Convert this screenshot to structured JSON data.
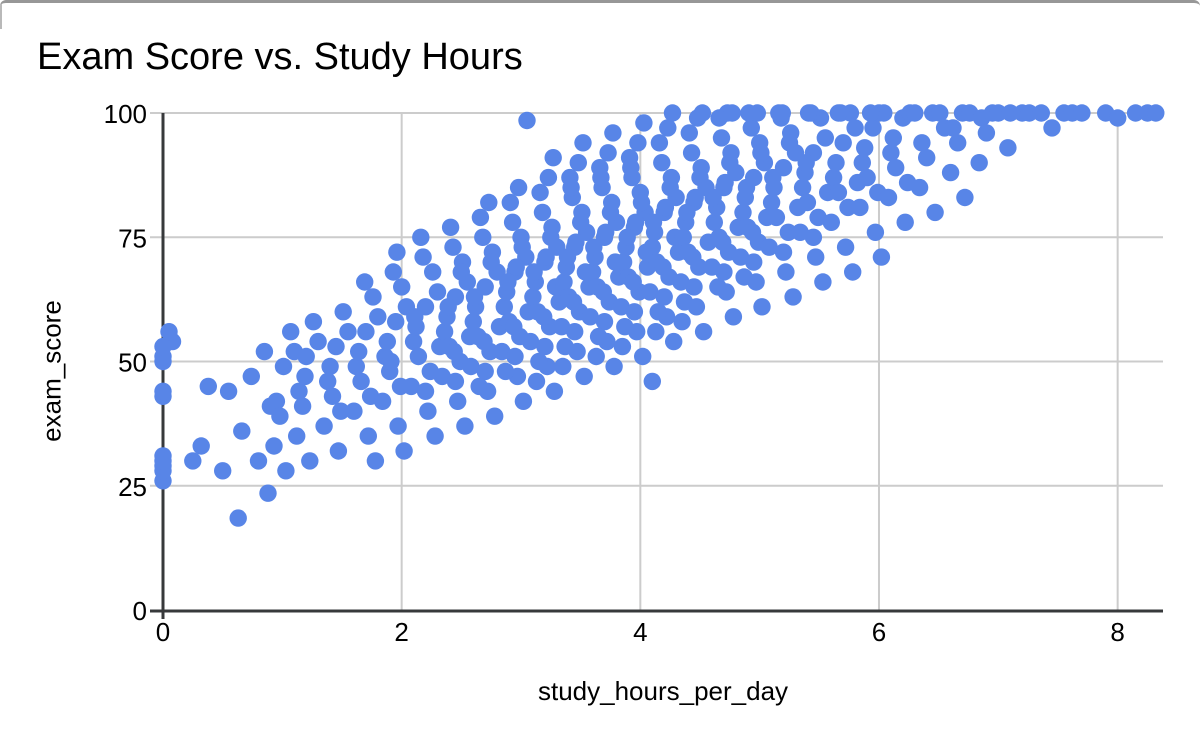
{
  "window": {
    "background": "#ffffff",
    "top_border_color": "#979797"
  },
  "chart_data": {
    "type": "scatter",
    "title": "Exam Score vs. Study Hours",
    "xlabel": "study_hours_per_day",
    "ylabel": "exam_score",
    "x_ticks": [
      0,
      2,
      4,
      6,
      8
    ],
    "y_ticks": [
      0,
      25,
      50,
      75,
      100
    ],
    "xlim": [
      0,
      8.38
    ],
    "ylim": [
      0,
      100
    ],
    "grid": true,
    "legend_position": "none",
    "point_color": "#5885E7",
    "point_radius": 8.7,
    "axis_color": "#37393b",
    "grid_color": "#cccccc",
    "text_color": "#000000",
    "points": [
      [
        0,
        26
      ],
      [
        0,
        28
      ],
      [
        0,
        29
      ],
      [
        0,
        31
      ],
      [
        0,
        30
      ],
      [
        0,
        43
      ],
      [
        0,
        44
      ],
      [
        0,
        50
      ],
      [
        0,
        51
      ],
      [
        0,
        53
      ],
      [
        0.08,
        54
      ],
      [
        0.05,
        56
      ],
      [
        0.25,
        30
      ],
      [
        0.32,
        33
      ],
      [
        0.38,
        45
      ],
      [
        0.5,
        28
      ],
      [
        0.55,
        44
      ],
      [
        0.63,
        18.5
      ],
      [
        0.66,
        36
      ],
      [
        0.74,
        47
      ],
      [
        0.8,
        30
      ],
      [
        0.85,
        52
      ],
      [
        0.88,
        23.5
      ],
      [
        0.9,
        41
      ],
      [
        0.95,
        42
      ],
      [
        1.01,
        49
      ],
      [
        0.93,
        33
      ],
      [
        1.07,
        56
      ],
      [
        0.98,
        39
      ],
      [
        1.03,
        28
      ],
      [
        1.1,
        52
      ],
      [
        1.14,
        44
      ],
      [
        1.2,
        51
      ],
      [
        1.12,
        35
      ],
      [
        1.26,
        58
      ],
      [
        1.17,
        41
      ],
      [
        1.23,
        30
      ],
      [
        1.3,
        54
      ],
      [
        1.19,
        47
      ],
      [
        1.38,
        46
      ],
      [
        1.45,
        53
      ],
      [
        1.35,
        37
      ],
      [
        1.51,
        60
      ],
      [
        1.42,
        43
      ],
      [
        1.47,
        32
      ],
      [
        1.55,
        56
      ],
      [
        1.4,
        49
      ],
      [
        1.49,
        40
      ],
      [
        1.62,
        49
      ],
      [
        1.7,
        56
      ],
      [
        1.6,
        40
      ],
      [
        1.76,
        63
      ],
      [
        1.66,
        46
      ],
      [
        1.72,
        35
      ],
      [
        1.8,
        59
      ],
      [
        1.64,
        52
      ],
      [
        1.74,
        43
      ],
      [
        1.69,
        66
      ],
      [
        1.78,
        30
      ],
      [
        1.86,
        51
      ],
      [
        1.95,
        58
      ],
      [
        1.84,
        42
      ],
      [
        2.0,
        65
      ],
      [
        1.9,
        48
      ],
      [
        1.97,
        37
      ],
      [
        2.04,
        61
      ],
      [
        1.88,
        54
      ],
      [
        1.99,
        45
      ],
      [
        1.93,
        68
      ],
      [
        2.02,
        32
      ],
      [
        1.96,
        72
      ],
      [
        1.91,
        50
      ],
      [
        2.1,
        54
      ],
      [
        2.2,
        61
      ],
      [
        2.08,
        45
      ],
      [
        2.26,
        68
      ],
      [
        2.14,
        51
      ],
      [
        2.22,
        40
      ],
      [
        2.3,
        64
      ],
      [
        2.12,
        57
      ],
      [
        2.24,
        48
      ],
      [
        2.18,
        71
      ],
      [
        2.28,
        35
      ],
      [
        2.16,
        75
      ],
      [
        2.32,
        53
      ],
      [
        2.2,
        44
      ],
      [
        2.11,
        59
      ],
      [
        2.36,
        56
      ],
      [
        2.45,
        63
      ],
      [
        2.34,
        47
      ],
      [
        2.51,
        70
      ],
      [
        2.4,
        53
      ],
      [
        2.47,
        42
      ],
      [
        2.55,
        66
      ],
      [
        2.38,
        59
      ],
      [
        2.49,
        50
      ],
      [
        2.43,
        73
      ],
      [
        2.53,
        37
      ],
      [
        2.41,
        77
      ],
      [
        2.57,
        55
      ],
      [
        2.45,
        46
      ],
      [
        2.39,
        61
      ],
      [
        2.5,
        68
      ],
      [
        2.44,
        52
      ],
      [
        2.6,
        58
      ],
      [
        2.7,
        65
      ],
      [
        2.58,
        49
      ],
      [
        2.76,
        72
      ],
      [
        2.64,
        55
      ],
      [
        2.72,
        44
      ],
      [
        2.8,
        68
      ],
      [
        2.62,
        61
      ],
      [
        2.74,
        52
      ],
      [
        2.68,
        75
      ],
      [
        2.78,
        39
      ],
      [
        2.66,
        79
      ],
      [
        2.82,
        57
      ],
      [
        2.7,
        48
      ],
      [
        2.61,
        63
      ],
      [
        2.75,
        70
      ],
      [
        2.69,
        54
      ],
      [
        2.73,
        82
      ],
      [
        2.65,
        45
      ],
      [
        2.86,
        61
      ],
      [
        2.95,
        68
      ],
      [
        2.84,
        52
      ],
      [
        3.0,
        75
      ],
      [
        2.9,
        58
      ],
      [
        2.97,
        47
      ],
      [
        3.04,
        71
      ],
      [
        2.88,
        64
      ],
      [
        2.99,
        55
      ],
      [
        2.93,
        78
      ],
      [
        3.02,
        42
      ],
      [
        2.91,
        82
      ],
      [
        3.06,
        60
      ],
      [
        2.95,
        51
      ],
      [
        2.89,
        66
      ],
      [
        3.01,
        73
      ],
      [
        2.94,
        57
      ],
      [
        2.98,
        85
      ],
      [
        2.87,
        48
      ],
      [
        3.05,
        98.5
      ],
      [
        2.96,
        69
      ],
      [
        3.1,
        63
      ],
      [
        3.2,
        70
      ],
      [
        3.08,
        54
      ],
      [
        3.26,
        77
      ],
      [
        3.14,
        60
      ],
      [
        3.22,
        49
      ],
      [
        3.3,
        73
      ],
      [
        3.12,
        66
      ],
      [
        3.24,
        57
      ],
      [
        3.18,
        80
      ],
      [
        3.28,
        44
      ],
      [
        3.16,
        84
      ],
      [
        3.32,
        62
      ],
      [
        3.2,
        53
      ],
      [
        3.11,
        68
      ],
      [
        3.25,
        75
      ],
      [
        3.19,
        59
      ],
      [
        3.23,
        87
      ],
      [
        3.15,
        50
      ],
      [
        3.27,
        91
      ],
      [
        3.21,
        71
      ],
      [
        3.13,
        46
      ],
      [
        3.29,
        65
      ],
      [
        3.36,
        66
      ],
      [
        3.45,
        73
      ],
      [
        3.34,
        57
      ],
      [
        3.51,
        80
      ],
      [
        3.4,
        63
      ],
      [
        3.47,
        52
      ],
      [
        3.55,
        76
      ],
      [
        3.38,
        69
      ],
      [
        3.49,
        60
      ],
      [
        3.43,
        83
      ],
      [
        3.53,
        47
      ],
      [
        3.41,
        87
      ],
      [
        3.57,
        65
      ],
      [
        3.45,
        56
      ],
      [
        3.39,
        71
      ],
      [
        3.5,
        78
      ],
      [
        3.44,
        62
      ],
      [
        3.48,
        90
      ],
      [
        3.37,
        53
      ],
      [
        3.52,
        94
      ],
      [
        3.46,
        74
      ],
      [
        3.35,
        49
      ],
      [
        3.54,
        68
      ],
      [
        3.42,
        85
      ],
      [
        3.6,
        68
      ],
      [
        3.7,
        75
      ],
      [
        3.58,
        59
      ],
      [
        3.76,
        82
      ],
      [
        3.64,
        65
      ],
      [
        3.72,
        54
      ],
      [
        3.8,
        78
      ],
      [
        3.62,
        71
      ],
      [
        3.74,
        62
      ],
      [
        3.68,
        85
      ],
      [
        3.78,
        49
      ],
      [
        3.66,
        89
      ],
      [
        3.82,
        67
      ],
      [
        3.7,
        58
      ],
      [
        3.61,
        73
      ],
      [
        3.75,
        80
      ],
      [
        3.69,
        64
      ],
      [
        3.73,
        92
      ],
      [
        3.65,
        55
      ],
      [
        3.77,
        96
      ],
      [
        3.71,
        76
      ],
      [
        3.63,
        51
      ],
      [
        3.79,
        70
      ],
      [
        3.67,
        87
      ],
      [
        3.86,
        70
      ],
      [
        3.95,
        77
      ],
      [
        3.84,
        61
      ],
      [
        4.0,
        84
      ],
      [
        3.9,
        67
      ],
      [
        3.97,
        56
      ],
      [
        4.04,
        80
      ],
      [
        3.88,
        73
      ],
      [
        3.99,
        64
      ],
      [
        3.93,
        87
      ],
      [
        4.02,
        51
      ],
      [
        3.91,
        91
      ],
      [
        4.06,
        69
      ],
      [
        3.95,
        60
      ],
      [
        3.89,
        75
      ],
      [
        4.01,
        82
      ],
      [
        3.94,
        66
      ],
      [
        3.98,
        94
      ],
      [
        3.87,
        57
      ],
      [
        4.03,
        98
      ],
      [
        3.96,
        78
      ],
      [
        3.85,
        53
      ],
      [
        4.05,
        72
      ],
      [
        3.92,
        89
      ],
      [
        4.1,
        73
      ],
      [
        4.2,
        80
      ],
      [
        4.08,
        64
      ],
      [
        4.26,
        87
      ],
      [
        4.14,
        70
      ],
      [
        4.22,
        59
      ],
      [
        4.3,
        83
      ],
      [
        4.12,
        76
      ],
      [
        4.24,
        67
      ],
      [
        4.18,
        90
      ],
      [
        4.28,
        54
      ],
      [
        4.16,
        94
      ],
      [
        4.32,
        72
      ],
      [
        4.2,
        63
      ],
      [
        4.11,
        78
      ],
      [
        4.25,
        85
      ],
      [
        4.19,
        69
      ],
      [
        4.23,
        97
      ],
      [
        4.15,
        60
      ],
      [
        4.27,
        100
      ],
      [
        4.21,
        81
      ],
      [
        4.13,
        56
      ],
      [
        4.29,
        75
      ],
      [
        4.1,
        46
      ],
      [
        4.36,
        75
      ],
      [
        4.45,
        82
      ],
      [
        4.34,
        66
      ],
      [
        4.51,
        89
      ],
      [
        4.4,
        72
      ],
      [
        4.47,
        61
      ],
      [
        4.55,
        85
      ],
      [
        4.38,
        78
      ],
      [
        4.49,
        69
      ],
      [
        4.43,
        92
      ],
      [
        4.53,
        56
      ],
      [
        4.41,
        96
      ],
      [
        4.57,
        74
      ],
      [
        4.45,
        65
      ],
      [
        4.39,
        80
      ],
      [
        4.5,
        87
      ],
      [
        4.44,
        71
      ],
      [
        4.48,
        99
      ],
      [
        4.37,
        62
      ],
      [
        4.52,
        100
      ],
      [
        4.46,
        83
      ],
      [
        4.35,
        58
      ],
      [
        4.62,
        78
      ],
      [
        4.7,
        85
      ],
      [
        4.6,
        69
      ],
      [
        4.76,
        92
      ],
      [
        4.66,
        75
      ],
      [
        4.72,
        64
      ],
      [
        4.8,
        88
      ],
      [
        4.64,
        81
      ],
      [
        4.74,
        72
      ],
      [
        4.68,
        95
      ],
      [
        4.78,
        59
      ],
      [
        4.66,
        99
      ],
      [
        4.82,
        77
      ],
      [
        4.7,
        68
      ],
      [
        4.61,
        83
      ],
      [
        4.75,
        90
      ],
      [
        4.69,
        74
      ],
      [
        4.73,
        100
      ],
      [
        4.65,
        65
      ],
      [
        4.77,
        100
      ],
      [
        4.71,
        86
      ],
      [
        4.86,
        80
      ],
      [
        4.95,
        87
      ],
      [
        4.84,
        71
      ],
      [
        5.0,
        94
      ],
      [
        4.9,
        77
      ],
      [
        4.97,
        66
      ],
      [
        5.04,
        90
      ],
      [
        4.88,
        83
      ],
      [
        4.99,
        74
      ],
      [
        4.93,
        97
      ],
      [
        5.02,
        61
      ],
      [
        4.91,
        100
      ],
      [
        5.06,
        79
      ],
      [
        4.95,
        70
      ],
      [
        4.89,
        85
      ],
      [
        5.01,
        92
      ],
      [
        4.94,
        76
      ],
      [
        4.98,
        100
      ],
      [
        4.87,
        67
      ],
      [
        5.1,
        82
      ],
      [
        5.2,
        89
      ],
      [
        5.08,
        73
      ],
      [
        5.26,
        96
      ],
      [
        5.14,
        79
      ],
      [
        5.22,
        68
      ],
      [
        5.3,
        92
      ],
      [
        5.12,
        85
      ],
      [
        5.24,
        76
      ],
      [
        5.18,
        99
      ],
      [
        5.28,
        63
      ],
      [
        5.16,
        100
      ],
      [
        5.32,
        81
      ],
      [
        5.2,
        72
      ],
      [
        5.11,
        87
      ],
      [
        5.25,
        94
      ],
      [
        5.19,
        100
      ],
      [
        5.36,
        85
      ],
      [
        5.45,
        92
      ],
      [
        5.34,
        76
      ],
      [
        5.51,
        99
      ],
      [
        5.4,
        82
      ],
      [
        5.47,
        71
      ],
      [
        5.55,
        95
      ],
      [
        5.38,
        88
      ],
      [
        5.49,
        79
      ],
      [
        5.43,
        100
      ],
      [
        5.53,
        66
      ],
      [
        5.41,
        100
      ],
      [
        5.57,
        84
      ],
      [
        5.45,
        75
      ],
      [
        5.39,
        90
      ],
      [
        5.62,
        87
      ],
      [
        5.7,
        94
      ],
      [
        5.6,
        78
      ],
      [
        5.76,
        100
      ],
      [
        5.66,
        84
      ],
      [
        5.72,
        73
      ],
      [
        5.8,
        97
      ],
      [
        5.64,
        90
      ],
      [
        5.74,
        81
      ],
      [
        5.68,
        100
      ],
      [
        5.78,
        68
      ],
      [
        5.66,
        100
      ],
      [
        5.82,
        86
      ],
      [
        5.86,
        90
      ],
      [
        5.95,
        97
      ],
      [
        5.84,
        81
      ],
      [
        6.0,
        100
      ],
      [
        5.9,
        87
      ],
      [
        5.97,
        76
      ],
      [
        6.04,
        100
      ],
      [
        5.88,
        93
      ],
      [
        5.99,
        84
      ],
      [
        5.93,
        100
      ],
      [
        6.02,
        71
      ],
      [
        6.1,
        92
      ],
      [
        6.2,
        99
      ],
      [
        6.08,
        83
      ],
      [
        6.26,
        100
      ],
      [
        6.14,
        89
      ],
      [
        6.22,
        78
      ],
      [
        6.3,
        100
      ],
      [
        6.12,
        95
      ],
      [
        6.24,
        86
      ],
      [
        6.36,
        94
      ],
      [
        6.45,
        100
      ],
      [
        6.34,
        85
      ],
      [
        6.51,
        100
      ],
      [
        6.4,
        91
      ],
      [
        6.47,
        80
      ],
      [
        6.55,
        97
      ],
      [
        6.62,
        97
      ],
      [
        6.7,
        100
      ],
      [
        6.6,
        88
      ],
      [
        6.76,
        100
      ],
      [
        6.66,
        94
      ],
      [
        6.72,
        83
      ],
      [
        6.86,
        99
      ],
      [
        6.95,
        100
      ],
      [
        6.84,
        90
      ],
      [
        7.0,
        100
      ],
      [
        6.9,
        96
      ],
      [
        7.1,
        100
      ],
      [
        7.2,
        100
      ],
      [
        7.08,
        93
      ],
      [
        7.26,
        100
      ],
      [
        7.36,
        100
      ],
      [
        7.45,
        97
      ],
      [
        7.55,
        100
      ],
      [
        7.62,
        100
      ],
      [
        7.7,
        100
      ],
      [
        7.9,
        100
      ],
      [
        8.0,
        99
      ],
      [
        8.15,
        100
      ],
      [
        8.25,
        100
      ],
      [
        8.32,
        100
      ]
    ]
  }
}
